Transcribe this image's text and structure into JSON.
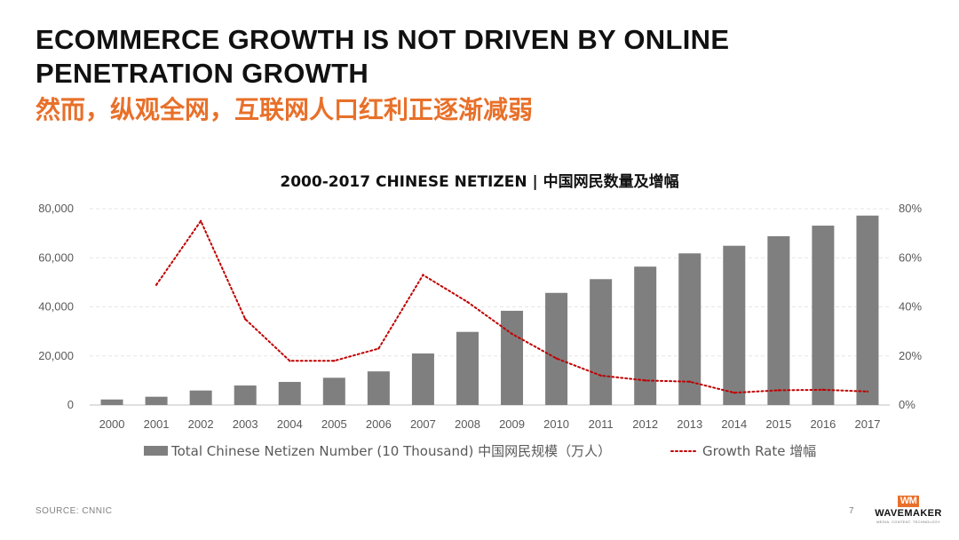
{
  "slide": {
    "headline": "ECOMMERCE GROWTH IS NOT DRIVEN BY ONLINE PENETRATION GROWTH",
    "subheadline": "然而，纵观全网，互联网人口红利正逐渐减弱",
    "source": "SOURCE: CNNIC",
    "page_number": "7",
    "logo": {
      "mark": "WM",
      "name": "WAVEMAKER",
      "tagline": "MEDIA. CONTENT. TECHNOLOGY"
    }
  },
  "colors": {
    "accent": "#e8702a",
    "bar": "#7f7f7f",
    "line": "#c00000",
    "axis_text": "#595959",
    "grid": "#e6e6e6"
  },
  "chart_data": {
    "type": "bar",
    "title": "2000-2017 CHINESE NETIZEN | 中国网民数量及增幅",
    "categories": [
      "2000",
      "2001",
      "2002",
      "2003",
      "2004",
      "2005",
      "2006",
      "2007",
      "2008",
      "2009",
      "2010",
      "2011",
      "2012",
      "2013",
      "2014",
      "2015",
      "2016",
      "2017"
    ],
    "series": [
      {
        "name": "Total Chinese Netizen Number (10 Thousand) 中国网民规模（万人）",
        "type": "bar",
        "axis": "left",
        "values": [
          2250,
          3370,
          5910,
          7950,
          9400,
          11100,
          13700,
          21000,
          29800,
          38400,
          45700,
          51300,
          56400,
          61800,
          64900,
          68800,
          73100,
          77200
        ]
      },
      {
        "name": "Growth Rate 增幅",
        "type": "line",
        "style": "dotted",
        "axis": "right",
        "values": [
          null,
          0.49,
          0.75,
          0.35,
          0.18,
          0.18,
          0.23,
          0.53,
          0.42,
          0.29,
          0.19,
          0.12,
          0.1,
          0.095,
          0.05,
          0.06,
          0.062,
          0.055
        ]
      }
    ],
    "y_left": {
      "lim": [
        0,
        80000
      ],
      "ticks": [
        0,
        20000,
        40000,
        60000,
        80000
      ],
      "tick_labels": [
        "0",
        "20,000",
        "40,000",
        "60,000",
        "80,000"
      ]
    },
    "y_right": {
      "lim": [
        0,
        0.8
      ],
      "ticks": [
        0,
        0.2,
        0.4,
        0.6,
        0.8
      ],
      "tick_labels": [
        "0%",
        "20%",
        "40%",
        "60%",
        "80%"
      ]
    },
    "grid": true,
    "legend_position": "bottom"
  }
}
